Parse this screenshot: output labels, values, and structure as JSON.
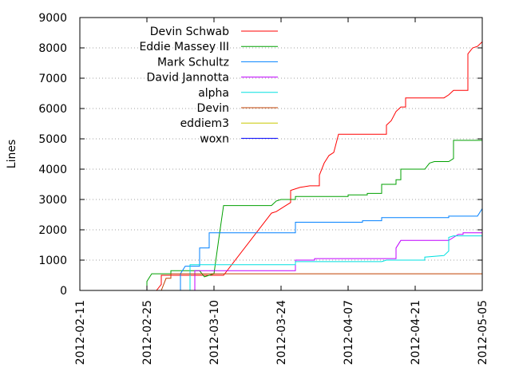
{
  "chart_data": {
    "type": "line",
    "title": "",
    "xlabel": "",
    "ylabel": "Lines",
    "x_type": "date",
    "xlim": [
      "2012-02-11",
      "2012-05-05"
    ],
    "ylim": [
      0,
      9000
    ],
    "xticks": [
      "2012-02-11",
      "2012-02-25",
      "2012-03-10",
      "2012-03-24",
      "2012-04-07",
      "2012-04-21",
      "2012-05-05"
    ],
    "yticks": [
      0,
      1000,
      2000,
      3000,
      4000,
      5000,
      6000,
      7000,
      8000,
      9000
    ],
    "grid": true,
    "legend_position": "top-left",
    "series": [
      {
        "name": "Devin Schwab",
        "color": "#ff0000",
        "points": [
          [
            "2012-02-27",
            0
          ],
          [
            "2012-02-28",
            200
          ],
          [
            "2012-02-28",
            500
          ],
          [
            "2012-03-01",
            500
          ],
          [
            "2012-03-12",
            500
          ],
          [
            "2012-03-22",
            2550
          ],
          [
            "2012-03-23",
            2600
          ],
          [
            "2012-03-25",
            2800
          ],
          [
            "2012-03-26",
            2900
          ],
          [
            "2012-03-26",
            3300
          ],
          [
            "2012-03-28",
            3400
          ],
          [
            "2012-03-30",
            3450
          ],
          [
            "2012-04-01",
            3450
          ],
          [
            "2012-04-01",
            3800
          ],
          [
            "2012-04-02",
            4200
          ],
          [
            "2012-04-03",
            4450
          ],
          [
            "2012-04-04",
            4550
          ],
          [
            "2012-04-05",
            5150
          ],
          [
            "2012-04-15",
            5150
          ],
          [
            "2012-04-15",
            5450
          ],
          [
            "2012-04-16",
            5600
          ],
          [
            "2012-04-17",
            5900
          ],
          [
            "2012-04-18",
            6050
          ],
          [
            "2012-04-19",
            6050
          ],
          [
            "2012-04-19",
            6350
          ],
          [
            "2012-04-27",
            6350
          ],
          [
            "2012-04-28",
            6450
          ],
          [
            "2012-04-29",
            6600
          ],
          [
            "2012-05-02",
            6600
          ],
          [
            "2012-05-02",
            7800
          ],
          [
            "2012-05-03",
            8000
          ],
          [
            "2012-05-04",
            8050
          ],
          [
            "2012-05-05",
            8200
          ]
        ]
      },
      {
        "name": "Eddie Massey III",
        "color": "#00a000",
        "points": [
          [
            "2012-02-25",
            0
          ],
          [
            "2012-02-25",
            300
          ],
          [
            "2012-02-26",
            550
          ],
          [
            "2012-03-01",
            550
          ],
          [
            "2012-03-01",
            650
          ],
          [
            "2012-03-07",
            650
          ],
          [
            "2012-03-08",
            450
          ],
          [
            "2012-03-10",
            550
          ],
          [
            "2012-03-11",
            1700
          ],
          [
            "2012-03-12",
            2800
          ],
          [
            "2012-03-22",
            2800
          ],
          [
            "2012-03-23",
            2950
          ],
          [
            "2012-03-24",
            3000
          ],
          [
            "2012-03-27",
            3000
          ],
          [
            "2012-03-27",
            3100
          ],
          [
            "2012-04-07",
            3100
          ],
          [
            "2012-04-07",
            3150
          ],
          [
            "2012-04-11",
            3150
          ],
          [
            "2012-04-11",
            3200
          ],
          [
            "2012-04-14",
            3200
          ],
          [
            "2012-04-14",
            3500
          ],
          [
            "2012-04-17",
            3500
          ],
          [
            "2012-04-17",
            3650
          ],
          [
            "2012-04-18",
            3650
          ],
          [
            "2012-04-18",
            4000
          ],
          [
            "2012-04-23",
            4000
          ],
          [
            "2012-04-24",
            4200
          ],
          [
            "2012-04-25",
            4250
          ],
          [
            "2012-04-28",
            4250
          ],
          [
            "2012-04-29",
            4350
          ],
          [
            "2012-04-29",
            4950
          ],
          [
            "2012-05-05",
            4950
          ],
          [
            "2012-05-05",
            5000
          ]
        ]
      },
      {
        "name": "Mark Schultz",
        "color": "#0080ff",
        "points": [
          [
            "2012-03-03",
            0
          ],
          [
            "2012-03-03",
            550
          ],
          [
            "2012-03-04",
            800
          ],
          [
            "2012-03-07",
            800
          ],
          [
            "2012-03-07",
            1400
          ],
          [
            "2012-03-09",
            1400
          ],
          [
            "2012-03-09",
            1900
          ],
          [
            "2012-03-27",
            1900
          ],
          [
            "2012-03-27",
            2250
          ],
          [
            "2012-04-10",
            2250
          ],
          [
            "2012-04-10",
            2300
          ],
          [
            "2012-04-14",
            2300
          ],
          [
            "2012-04-14",
            2400
          ],
          [
            "2012-04-28",
            2400
          ],
          [
            "2012-04-28",
            2450
          ],
          [
            "2012-05-04",
            2450
          ],
          [
            "2012-05-05",
            2700
          ]
        ]
      },
      {
        "name": "David Jannotta",
        "color": "#c000ff",
        "points": [
          [
            "2012-03-06",
            0
          ],
          [
            "2012-03-06",
            650
          ],
          [
            "2012-03-27",
            650
          ],
          [
            "2012-03-27",
            1000
          ],
          [
            "2012-03-31",
            1000
          ],
          [
            "2012-03-31",
            1050
          ],
          [
            "2012-04-17",
            1050
          ],
          [
            "2012-04-17",
            1400
          ],
          [
            "2012-04-18",
            1650
          ],
          [
            "2012-04-28",
            1650
          ],
          [
            "2012-04-29",
            1750
          ],
          [
            "2012-04-30",
            1850
          ],
          [
            "2012-05-01",
            1850
          ],
          [
            "2012-05-01",
            1900
          ],
          [
            "2012-05-05",
            1900
          ]
        ]
      },
      {
        "name": "alpha",
        "color": "#00e0e0",
        "points": [
          [
            "2012-03-05",
            0
          ],
          [
            "2012-03-05",
            850
          ],
          [
            "2012-03-27",
            850
          ],
          [
            "2012-03-27",
            950
          ],
          [
            "2012-04-14",
            950
          ],
          [
            "2012-04-15",
            1000
          ],
          [
            "2012-04-23",
            1000
          ],
          [
            "2012-04-23",
            1100
          ],
          [
            "2012-04-27",
            1150
          ],
          [
            "2012-04-28",
            1300
          ],
          [
            "2012-04-28",
            1750
          ],
          [
            "2012-04-29",
            1800
          ],
          [
            "2012-05-05",
            1800
          ]
        ]
      },
      {
        "name": "Devin",
        "color": "#c04000",
        "points": [
          [
            "2012-02-27",
            0
          ],
          [
            "2012-02-28",
            0
          ],
          [
            "2012-02-29",
            400
          ],
          [
            "2012-03-01",
            400
          ],
          [
            "2012-03-01",
            550
          ],
          [
            "2012-05-05",
            550
          ]
        ]
      },
      {
        "name": "eddiem3",
        "color": "#c8c800",
        "points": []
      },
      {
        "name": "woxn",
        "color": "#0000ff",
        "points": []
      }
    ]
  }
}
